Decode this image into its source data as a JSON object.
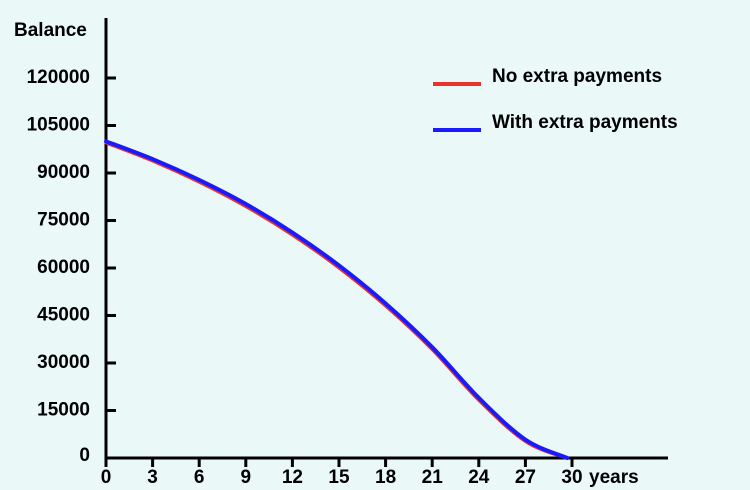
{
  "chart_data": {
    "type": "line",
    "title": "",
    "xlabel": "years",
    "ylabel": "Balance",
    "xlim": [
      0,
      30
    ],
    "ylim": [
      0,
      120000
    ],
    "x_ticks": [
      0,
      3,
      6,
      9,
      12,
      15,
      18,
      21,
      24,
      27,
      30
    ],
    "y_ticks": [
      0,
      15000,
      30000,
      45000,
      60000,
      75000,
      90000,
      105000,
      120000
    ],
    "grid": false,
    "legend_position": "top-right",
    "series": [
      {
        "name": "No extra payments",
        "color": "#e8322a",
        "x": [
          0,
          3,
          6,
          9,
          12,
          15,
          18,
          21,
          24,
          27,
          29.6
        ],
        "values": [
          99500,
          93800,
          87100,
          79400,
          70400,
          60000,
          48000,
          34200,
          18200,
          5200,
          0
        ]
      },
      {
        "name": "With extra payments",
        "color": "#1a1aff",
        "x": [
          0,
          3,
          6,
          9,
          12,
          15,
          18,
          21,
          24,
          27,
          29.7
        ],
        "values": [
          100000,
          94400,
          87800,
          80200,
          71200,
          60800,
          48800,
          35000,
          19000,
          5800,
          0
        ]
      }
    ]
  }
}
